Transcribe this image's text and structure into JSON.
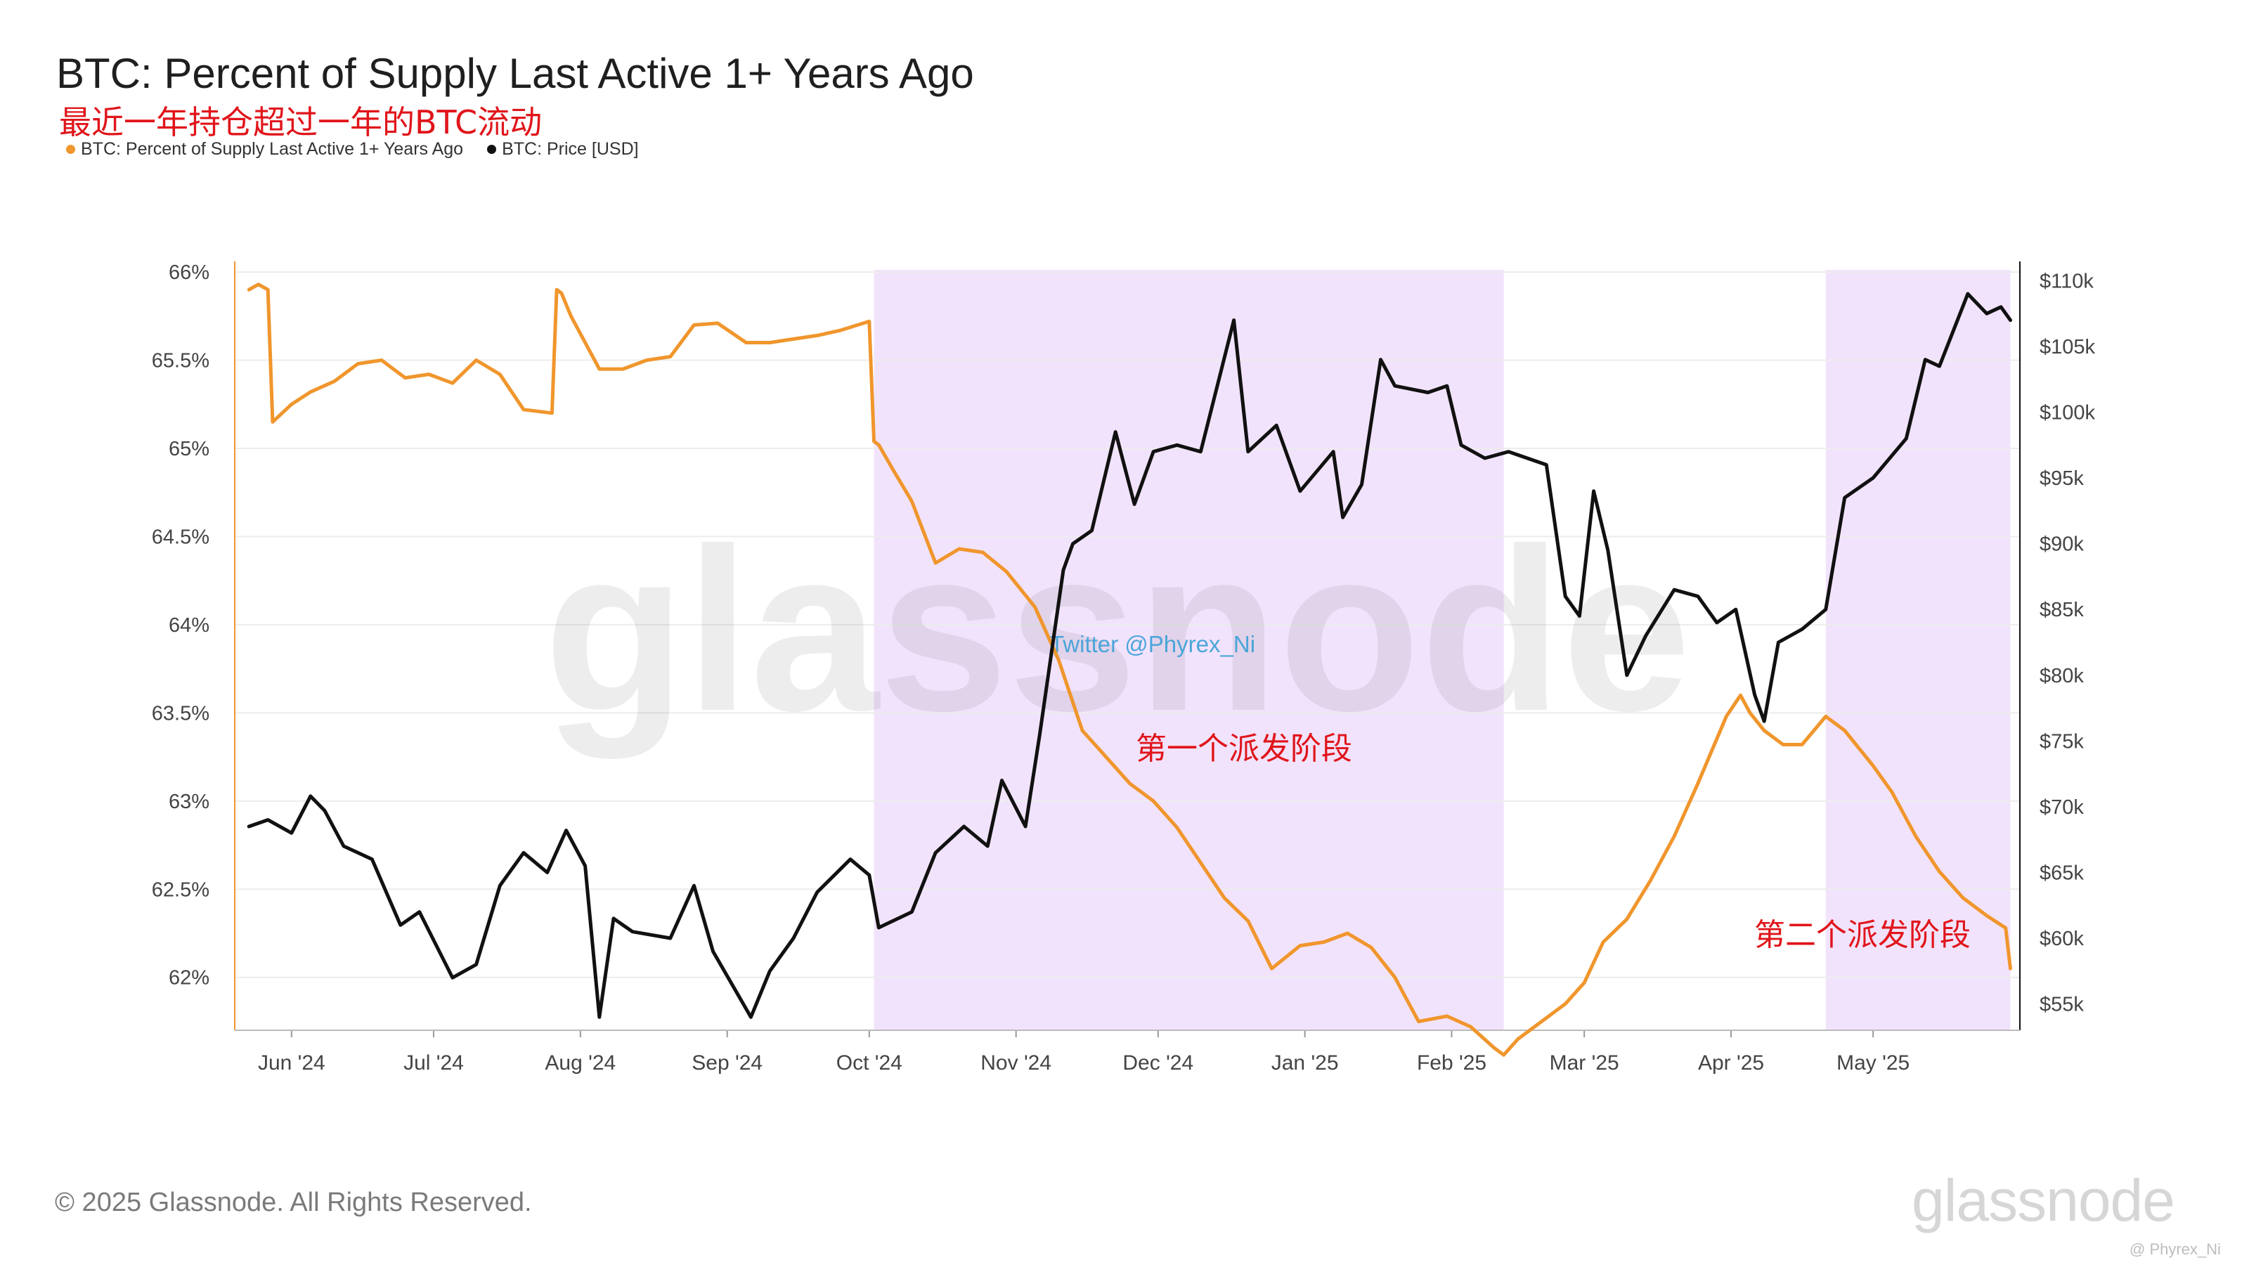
{
  "header": {
    "title": "BTC: Percent of Supply Last Active 1+ Years Ago",
    "subtitle": "最近一年持仓超过一年的BTC流动"
  },
  "legend": [
    {
      "label": "BTC: Percent of Supply Last Active 1+ Years Ago",
      "color": "#f0962d"
    },
    {
      "label": "BTC: Price [USD]",
      "color": "#111111"
    }
  ],
  "footer": {
    "copyright": "© 2025 Glassnode. All Rights Reserved.",
    "logo": "glassnode",
    "credit": "@ Phyrex_Ni"
  },
  "chart_data": {
    "type": "line",
    "x_tick_labels": [
      "Jun '24",
      "Jul '24",
      "Aug '24",
      "Sep '24",
      "Oct '24",
      "Nov '24",
      "Dec '24",
      "Jan '25",
      "Feb '25",
      "Mar '25",
      "Apr '25",
      "May '25"
    ],
    "y_left_ticks": [
      "66%",
      "65.5%",
      "65%",
      "64.5%",
      "64%",
      "63.5%",
      "63%",
      "62.5%",
      "62%"
    ],
    "y_right_ticks": [
      "$110k",
      "$105k",
      "$100k",
      "$95k",
      "$90k",
      "$85k",
      "$80k",
      "$75k",
      "$70k",
      "$65k",
      "$60k",
      "$55k"
    ],
    "ylim_left": [
      61.7,
      66.1
    ],
    "ylim_right": [
      53000,
      112000
    ],
    "y_left_scale": "percent",
    "y_right_scale": "USD",
    "grid": true,
    "watermark": "glassnode",
    "watermark_note": "Twitter @Phyrex_Ni",
    "highlight_regions": [
      {
        "start": "2024-10-02",
        "end": "2025-02-12",
        "color": "#f2e3fc",
        "label": "第一个派发阶段",
        "label_color": "#e0151b"
      },
      {
        "start": "2025-04-21",
        "end": "2025-05-30",
        "color": "#f2e3fc",
        "label": "第二个派发阶段",
        "label_color": "#e0151b"
      }
    ],
    "series": [
      {
        "name": "BTC: Percent of Supply Last Active 1+ Years Ago",
        "axis": "left",
        "color": "#f0962d",
        "x": [
          "2024-05-23",
          "2024-05-25",
          "2024-05-27",
          "2024-05-28",
          "2024-06-01",
          "2024-06-05",
          "2024-06-10",
          "2024-06-15",
          "2024-06-20",
          "2024-06-25",
          "2024-06-30",
          "2024-07-05",
          "2024-07-10",
          "2024-07-15",
          "2024-07-20",
          "2024-07-26",
          "2024-07-27",
          "2024-07-28",
          "2024-07-30",
          "2024-08-05",
          "2024-08-10",
          "2024-08-15",
          "2024-08-20",
          "2024-08-25",
          "2024-08-30",
          "2024-09-05",
          "2024-09-10",
          "2024-09-15",
          "2024-09-20",
          "2024-09-25",
          "2024-10-01",
          "2024-10-02",
          "2024-10-03",
          "2024-10-06",
          "2024-10-10",
          "2024-10-15",
          "2024-10-20",
          "2024-10-25",
          "2024-10-30",
          "2024-11-05",
          "2024-11-10",
          "2024-11-15",
          "2024-11-20",
          "2024-11-25",
          "2024-11-30",
          "2024-12-05",
          "2024-12-10",
          "2024-12-15",
          "2024-12-20",
          "2024-12-25",
          "2024-12-31",
          "2025-01-05",
          "2025-01-10",
          "2025-01-15",
          "2025-01-20",
          "2025-01-25",
          "2025-01-31",
          "2025-02-05",
          "2025-02-10",
          "2025-02-12",
          "2025-02-15",
          "2025-02-20",
          "2025-02-25",
          "2025-03-01",
          "2025-03-05",
          "2025-03-10",
          "2025-03-15",
          "2025-03-20",
          "2025-03-25",
          "2025-03-31",
          "2025-04-03",
          "2025-04-05",
          "2025-04-08",
          "2025-04-12",
          "2025-04-16",
          "2025-04-21",
          "2025-04-25",
          "2025-05-01",
          "2025-05-05",
          "2025-05-10",
          "2025-05-15",
          "2025-05-20",
          "2025-05-25",
          "2025-05-29",
          "2025-05-30"
        ],
        "values": [
          65.9,
          65.93,
          65.9,
          65.15,
          65.25,
          65.32,
          65.38,
          65.48,
          65.5,
          65.4,
          65.42,
          65.37,
          65.5,
          65.42,
          65.22,
          65.2,
          65.9,
          65.88,
          65.75,
          65.45,
          65.45,
          65.5,
          65.52,
          65.7,
          65.71,
          65.6,
          65.6,
          65.62,
          65.64,
          65.67,
          65.72,
          65.04,
          65.02,
          64.88,
          64.7,
          64.35,
          64.43,
          64.41,
          64.3,
          64.1,
          63.8,
          63.4,
          63.25,
          63.1,
          63.0,
          62.85,
          62.65,
          62.45,
          62.32,
          62.05,
          62.18,
          62.2,
          62.25,
          62.17,
          62.0,
          61.75,
          61.78,
          61.72,
          61.6,
          61.56,
          61.65,
          61.75,
          61.85,
          61.97,
          62.2,
          62.33,
          62.55,
          62.8,
          63.1,
          63.48,
          63.6,
          63.5,
          63.4,
          63.32,
          63.32,
          63.48,
          63.4,
          63.2,
          63.05,
          62.8,
          62.6,
          62.45,
          62.35,
          62.28,
          62.05
        ]
      },
      {
        "name": "BTC: Price [USD]",
        "axis": "right",
        "color": "#111111",
        "x": [
          "2024-05-23",
          "2024-05-27",
          "2024-06-01",
          "2024-06-05",
          "2024-06-08",
          "2024-06-12",
          "2024-06-18",
          "2024-06-24",
          "2024-06-28",
          "2024-07-05",
          "2024-07-10",
          "2024-07-15",
          "2024-07-20",
          "2024-07-25",
          "2024-07-29",
          "2024-08-02",
          "2024-08-05",
          "2024-08-08",
          "2024-08-12",
          "2024-08-20",
          "2024-08-25",
          "2024-08-29",
          "2024-09-06",
          "2024-09-10",
          "2024-09-15",
          "2024-09-20",
          "2024-09-27",
          "2024-10-01",
          "2024-10-03",
          "2024-10-10",
          "2024-10-15",
          "2024-10-21",
          "2024-10-26",
          "2024-10-29",
          "2024-11-03",
          "2024-11-06",
          "2024-11-11",
          "2024-11-13",
          "2024-11-17",
          "2024-11-22",
          "2024-11-26",
          "2024-11-30",
          "2024-12-05",
          "2024-12-10",
          "2024-12-17",
          "2024-12-20",
          "2024-12-26",
          "2024-12-31",
          "2025-01-07",
          "2025-01-09",
          "2025-01-13",
          "2025-01-17",
          "2025-01-20",
          "2025-01-27",
          "2025-01-31",
          "2025-02-03",
          "2025-02-08",
          "2025-02-13",
          "2025-02-21",
          "2025-02-25",
          "2025-02-28",
          "2025-03-03",
          "2025-03-06",
          "2025-03-10",
          "2025-03-14",
          "2025-03-20",
          "2025-03-25",
          "2025-03-29",
          "2025-04-02",
          "2025-04-06",
          "2025-04-08",
          "2025-04-11",
          "2025-04-16",
          "2025-04-21",
          "2025-04-25",
          "2025-05-01",
          "2025-05-08",
          "2025-05-12",
          "2025-05-15",
          "2025-05-21",
          "2025-05-25",
          "2025-05-28",
          "2025-05-30"
        ],
        "values": [
          68500,
          69000,
          68000,
          70800,
          69700,
          67000,
          66000,
          61000,
          62000,
          57000,
          58000,
          64000,
          66500,
          65000,
          68200,
          65500,
          54000,
          61500,
          60500,
          60000,
          64000,
          59000,
          54000,
          57500,
          60000,
          63500,
          66000,
          64800,
          60800,
          62000,
          66500,
          68500,
          67000,
          72000,
          68500,
          75500,
          88000,
          90000,
          91000,
          98500,
          93000,
          97000,
          97500,
          97000,
          107000,
          97000,
          99000,
          94000,
          97000,
          92000,
          94500,
          104000,
          102000,
          101500,
          102000,
          97500,
          96500,
          97000,
          96000,
          86000,
          84500,
          94000,
          89500,
          80000,
          83000,
          86500,
          86000,
          84000,
          85000,
          78500,
          76500,
          82500,
          83500,
          85000,
          93500,
          95000,
          98000,
          104000,
          103500,
          109000,
          107500,
          108000,
          107000
        ]
      }
    ]
  }
}
